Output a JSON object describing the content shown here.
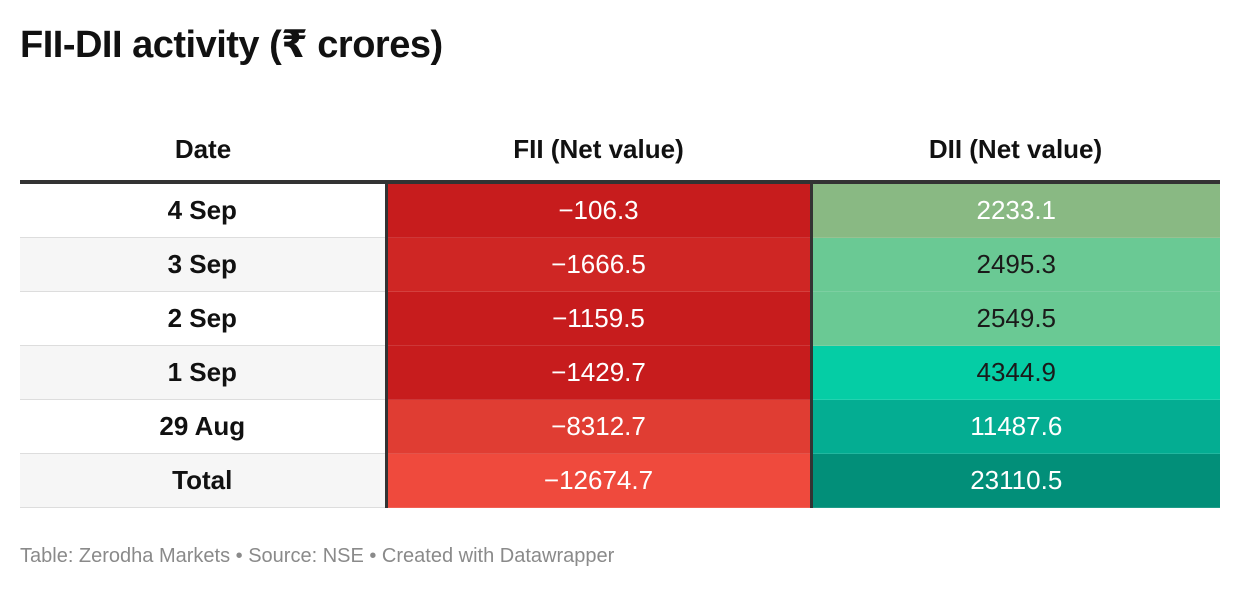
{
  "title": "FII-DII activity (₹ crores)",
  "chart_data": {
    "type": "table",
    "title": "FII-DII activity (₹ crores)",
    "columns": [
      "Date",
      "FII (Net value)",
      "DII (Net value)"
    ],
    "rows": [
      {
        "date": "4 Sep",
        "fii": "−106.3",
        "dii": "2233.1",
        "fii_color": "#c71c1d",
        "dii_color": "#89b983",
        "fii_text": "#ffffff",
        "dii_text": "#ffffff"
      },
      {
        "date": "3 Sep",
        "fii": "−1666.5",
        "dii": "2495.3",
        "fii_color": "#cf2624",
        "dii_color": "#6ac994",
        "fii_text": "#ffffff",
        "dii_text": "#1a1a1a"
      },
      {
        "date": "2 Sep",
        "fii": "−1159.5",
        "dii": "2549.5",
        "fii_color": "#c71c1d",
        "dii_color": "#6ac994",
        "fii_text": "#ffffff",
        "dii_text": "#1a1a1a"
      },
      {
        "date": "1 Sep",
        "fii": "−1429.7",
        "dii": "4344.9",
        "fii_color": "#c71c1d",
        "dii_color": "#05cda5",
        "fii_text": "#ffffff",
        "dii_text": "#1a1a1a"
      },
      {
        "date": "29 Aug",
        "fii": "−8312.7",
        "dii": "11487.6",
        "fii_color": "#e03d33",
        "dii_color": "#04ad92",
        "fii_text": "#ffffff",
        "dii_text": "#ffffff"
      },
      {
        "date": "Total",
        "fii": "−12674.7",
        "dii": "23110.5",
        "fii_color": "#ef4a3d",
        "dii_color": "#028f79",
        "fii_text": "#ffffff",
        "dii_text": "#ffffff"
      }
    ]
  },
  "footer": "Table: Zerodha Markets • Source: NSE • Created with Datawrapper"
}
